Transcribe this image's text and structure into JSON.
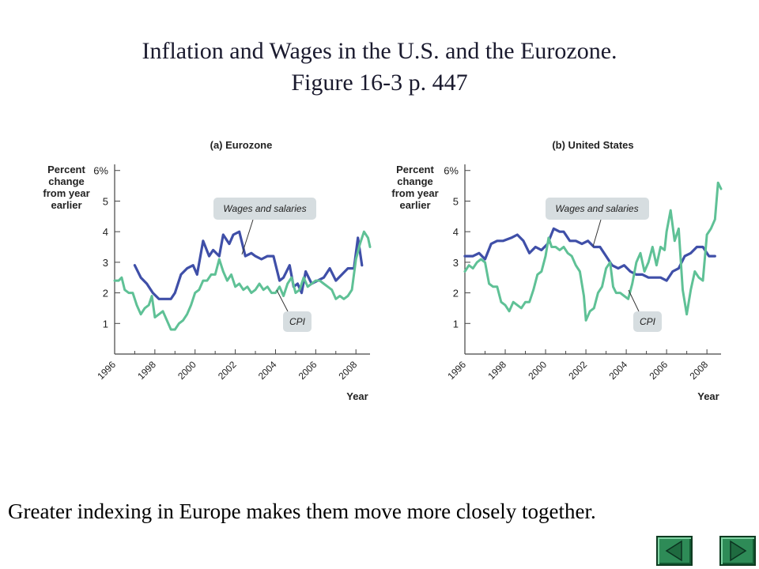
{
  "slide": {
    "title_line1": "Inflation and Wages in the U.S. and the Eurozone.",
    "title_line2": "Figure 16-3 p. 447",
    "footer": "Greater indexing in Europe makes them move more closely together."
  },
  "colors": {
    "wages": "#3f4fa8",
    "cpi": "#5fc196",
    "axis": "#444444",
    "callout_bg": "#d6dde0",
    "nav": "#2e8b57"
  },
  "nav": {
    "back_icon": "triangle-left-icon",
    "forward_icon": "triangle-right-icon"
  },
  "chart_data": [
    {
      "type": "line",
      "title": "(a) Eurozone",
      "ylabel": [
        "Percent",
        "change",
        "from year",
        "earlier"
      ],
      "xlabel": "Year",
      "y_ticks": [
        "1",
        "2",
        "3",
        "4",
        "5",
        "6%"
      ],
      "x_ticks": [
        "1996",
        "1998",
        "2000",
        "2002",
        "2004",
        "2006",
        "2008"
      ],
      "xlim": [
        1996,
        2008.7
      ],
      "ylim": [
        0,
        6.2
      ],
      "grid": false,
      "annotations": [
        "Wages and salaries",
        "CPI"
      ],
      "series": [
        {
          "name": "Wages and salaries",
          "x": [
            1997,
            1997.3,
            1997.6,
            1997.9,
            1998.2,
            1998.5,
            1998.8,
            1999.0,
            1999.3,
            1999.6,
            1999.9,
            2000.1,
            2000.4,
            2000.7,
            2000.9,
            2001.2,
            2001.4,
            2001.7,
            2001.9,
            2002.2,
            2002.5,
            2002.8,
            2003.0,
            2003.3,
            2003.6,
            2003.9,
            2004.2,
            2004.4,
            2004.7,
            2004.9,
            2005.1,
            2005.3,
            2005.5,
            2005.8,
            2006.1,
            2006.4,
            2006.7,
            2007.0,
            2007.3,
            2007.6,
            2007.9,
            2008.1,
            2008.3
          ],
          "values": [
            2.9,
            2.5,
            2.3,
            2.0,
            1.8,
            1.8,
            1.8,
            2.0,
            2.6,
            2.8,
            2.9,
            2.6,
            3.7,
            3.2,
            3.4,
            3.2,
            3.9,
            3.6,
            3.9,
            4.0,
            3.2,
            3.3,
            3.2,
            3.1,
            3.2,
            3.2,
            2.4,
            2.5,
            2.9,
            2.2,
            2.3,
            2.0,
            2.7,
            2.3,
            2.4,
            2.5,
            2.8,
            2.4,
            2.6,
            2.8,
            2.8,
            3.8,
            2.9
          ]
        },
        {
          "name": "CPI",
          "x": [
            1996,
            1996.2,
            1996.35,
            1996.5,
            1996.7,
            1996.9,
            1997.1,
            1997.3,
            1997.5,
            1997.7,
            1997.85,
            1998.0,
            1998.2,
            1998.4,
            1998.6,
            1998.8,
            1999.0,
            1999.2,
            1999.4,
            1999.6,
            1999.8,
            2000.0,
            2000.2,
            2000.4,
            2000.6,
            2000.8,
            2001.0,
            2001.2,
            2001.4,
            2001.6,
            2001.8,
            2002.0,
            2002.2,
            2002.4,
            2002.6,
            2002.8,
            2003.0,
            2003.2,
            2003.4,
            2003.6,
            2003.8,
            2004.0,
            2004.2,
            2004.4,
            2004.6,
            2004.8,
            2005.0,
            2005.2,
            2005.4,
            2005.6,
            2005.8,
            2006.0,
            2006.2,
            2006.4,
            2006.6,
            2006.8,
            2007.0,
            2007.2,
            2007.4,
            2007.6,
            2007.8,
            2008.0,
            2008.2,
            2008.4,
            2008.6,
            2008.7
          ],
          "values": [
            2.4,
            2.4,
            2.5,
            2.1,
            2.0,
            2.0,
            1.6,
            1.3,
            1.5,
            1.6,
            1.9,
            1.2,
            1.3,
            1.4,
            1.1,
            0.8,
            0.8,
            1.0,
            1.1,
            1.3,
            1.6,
            2.0,
            2.1,
            2.4,
            2.4,
            2.6,
            2.6,
            3.1,
            2.7,
            2.4,
            2.6,
            2.2,
            2.3,
            2.1,
            2.2,
            2.0,
            2.1,
            2.3,
            2.1,
            2.2,
            2.0,
            2.0,
            2.2,
            1.9,
            2.3,
            2.5,
            2.0,
            2.1,
            2.5,
            2.2,
            2.3,
            2.4,
            2.4,
            2.3,
            2.2,
            2.1,
            1.8,
            1.9,
            1.8,
            1.9,
            2.1,
            3.1,
            3.6,
            4.0,
            3.8,
            3.5
          ]
        }
      ]
    },
    {
      "type": "line",
      "title": "(b) United States",
      "ylabel": [
        "Percent",
        "change",
        "from year",
        "earlier"
      ],
      "xlabel": "Year",
      "y_ticks": [
        "1",
        "2",
        "3",
        "4",
        "5",
        "6%"
      ],
      "x_ticks": [
        "1996",
        "1998",
        "2000",
        "2002",
        "2004",
        "2006",
        "2008"
      ],
      "xlim": [
        1996,
        2008.7
      ],
      "ylim": [
        0,
        6.2
      ],
      "grid": false,
      "annotations": [
        "Wages and salaries",
        "CPI"
      ],
      "series": [
        {
          "name": "Wages and salaries",
          "x": [
            1996,
            1996.4,
            1996.7,
            1997.0,
            1997.3,
            1997.6,
            1997.9,
            1998.3,
            1998.6,
            1998.9,
            1999.2,
            1999.5,
            1999.8,
            2000.1,
            2000.4,
            2000.7,
            2000.9,
            2001.2,
            2001.5,
            2001.8,
            2002.1,
            2002.4,
            2002.7,
            2003.0,
            2003.3,
            2003.6,
            2003.9,
            2004.2,
            2004.5,
            2004.8,
            2005.1,
            2005.4,
            2005.7,
            2006.0,
            2006.3,
            2006.6,
            2006.9,
            2007.2,
            2007.5,
            2007.8,
            2008.1,
            2008.4
          ],
          "values": [
            3.2,
            3.2,
            3.3,
            3.1,
            3.6,
            3.7,
            3.7,
            3.8,
            3.9,
            3.7,
            3.3,
            3.5,
            3.4,
            3.6,
            4.1,
            4.0,
            4.0,
            3.7,
            3.7,
            3.6,
            3.7,
            3.5,
            3.5,
            3.2,
            2.9,
            2.8,
            2.9,
            2.7,
            2.6,
            2.6,
            2.5,
            2.5,
            2.5,
            2.4,
            2.7,
            2.8,
            3.2,
            3.3,
            3.5,
            3.5,
            3.2,
            3.2
          ]
        },
        {
          "name": "CPI",
          "x": [
            1996,
            1996.2,
            1996.4,
            1996.6,
            1996.8,
            1997.0,
            1997.2,
            1997.4,
            1997.6,
            1997.8,
            1998.0,
            1998.2,
            1998.4,
            1998.6,
            1998.8,
            1999.0,
            1999.2,
            1999.4,
            1999.6,
            1999.8,
            2000.0,
            2000.15,
            2000.3,
            2000.5,
            2000.7,
            2000.9,
            2001.1,
            2001.3,
            2001.5,
            2001.7,
            2001.9,
            2002.0,
            2002.2,
            2002.4,
            2002.6,
            2002.8,
            2003.0,
            2003.2,
            2003.35,
            2003.5,
            2003.7,
            2003.9,
            2004.1,
            2004.3,
            2004.5,
            2004.7,
            2004.9,
            2005.1,
            2005.3,
            2005.5,
            2005.7,
            2005.9,
            2006.0,
            2006.2,
            2006.4,
            2006.6,
            2006.8,
            2007.0,
            2007.2,
            2007.4,
            2007.6,
            2007.8,
            2008.0,
            2008.2,
            2008.4,
            2008.55,
            2008.7
          ],
          "values": [
            2.7,
            2.9,
            2.8,
            3.0,
            3.1,
            3.0,
            2.3,
            2.2,
            2.2,
            1.7,
            1.6,
            1.4,
            1.7,
            1.6,
            1.5,
            1.7,
            1.7,
            2.1,
            2.6,
            2.7,
            3.2,
            3.8,
            3.5,
            3.5,
            3.4,
            3.5,
            3.3,
            3.2,
            2.9,
            2.7,
            1.9,
            1.1,
            1.4,
            1.5,
            2.0,
            2.2,
            2.8,
            3.0,
            2.2,
            2.0,
            2.0,
            1.9,
            1.8,
            2.3,
            3.0,
            3.3,
            2.7,
            3.0,
            3.5,
            2.9,
            3.5,
            3.4,
            4.0,
            4.7,
            3.7,
            4.1,
            2.1,
            1.3,
            2.1,
            2.7,
            2.5,
            2.4,
            3.9,
            4.1,
            4.4,
            5.6,
            5.4
          ]
        }
      ]
    }
  ]
}
